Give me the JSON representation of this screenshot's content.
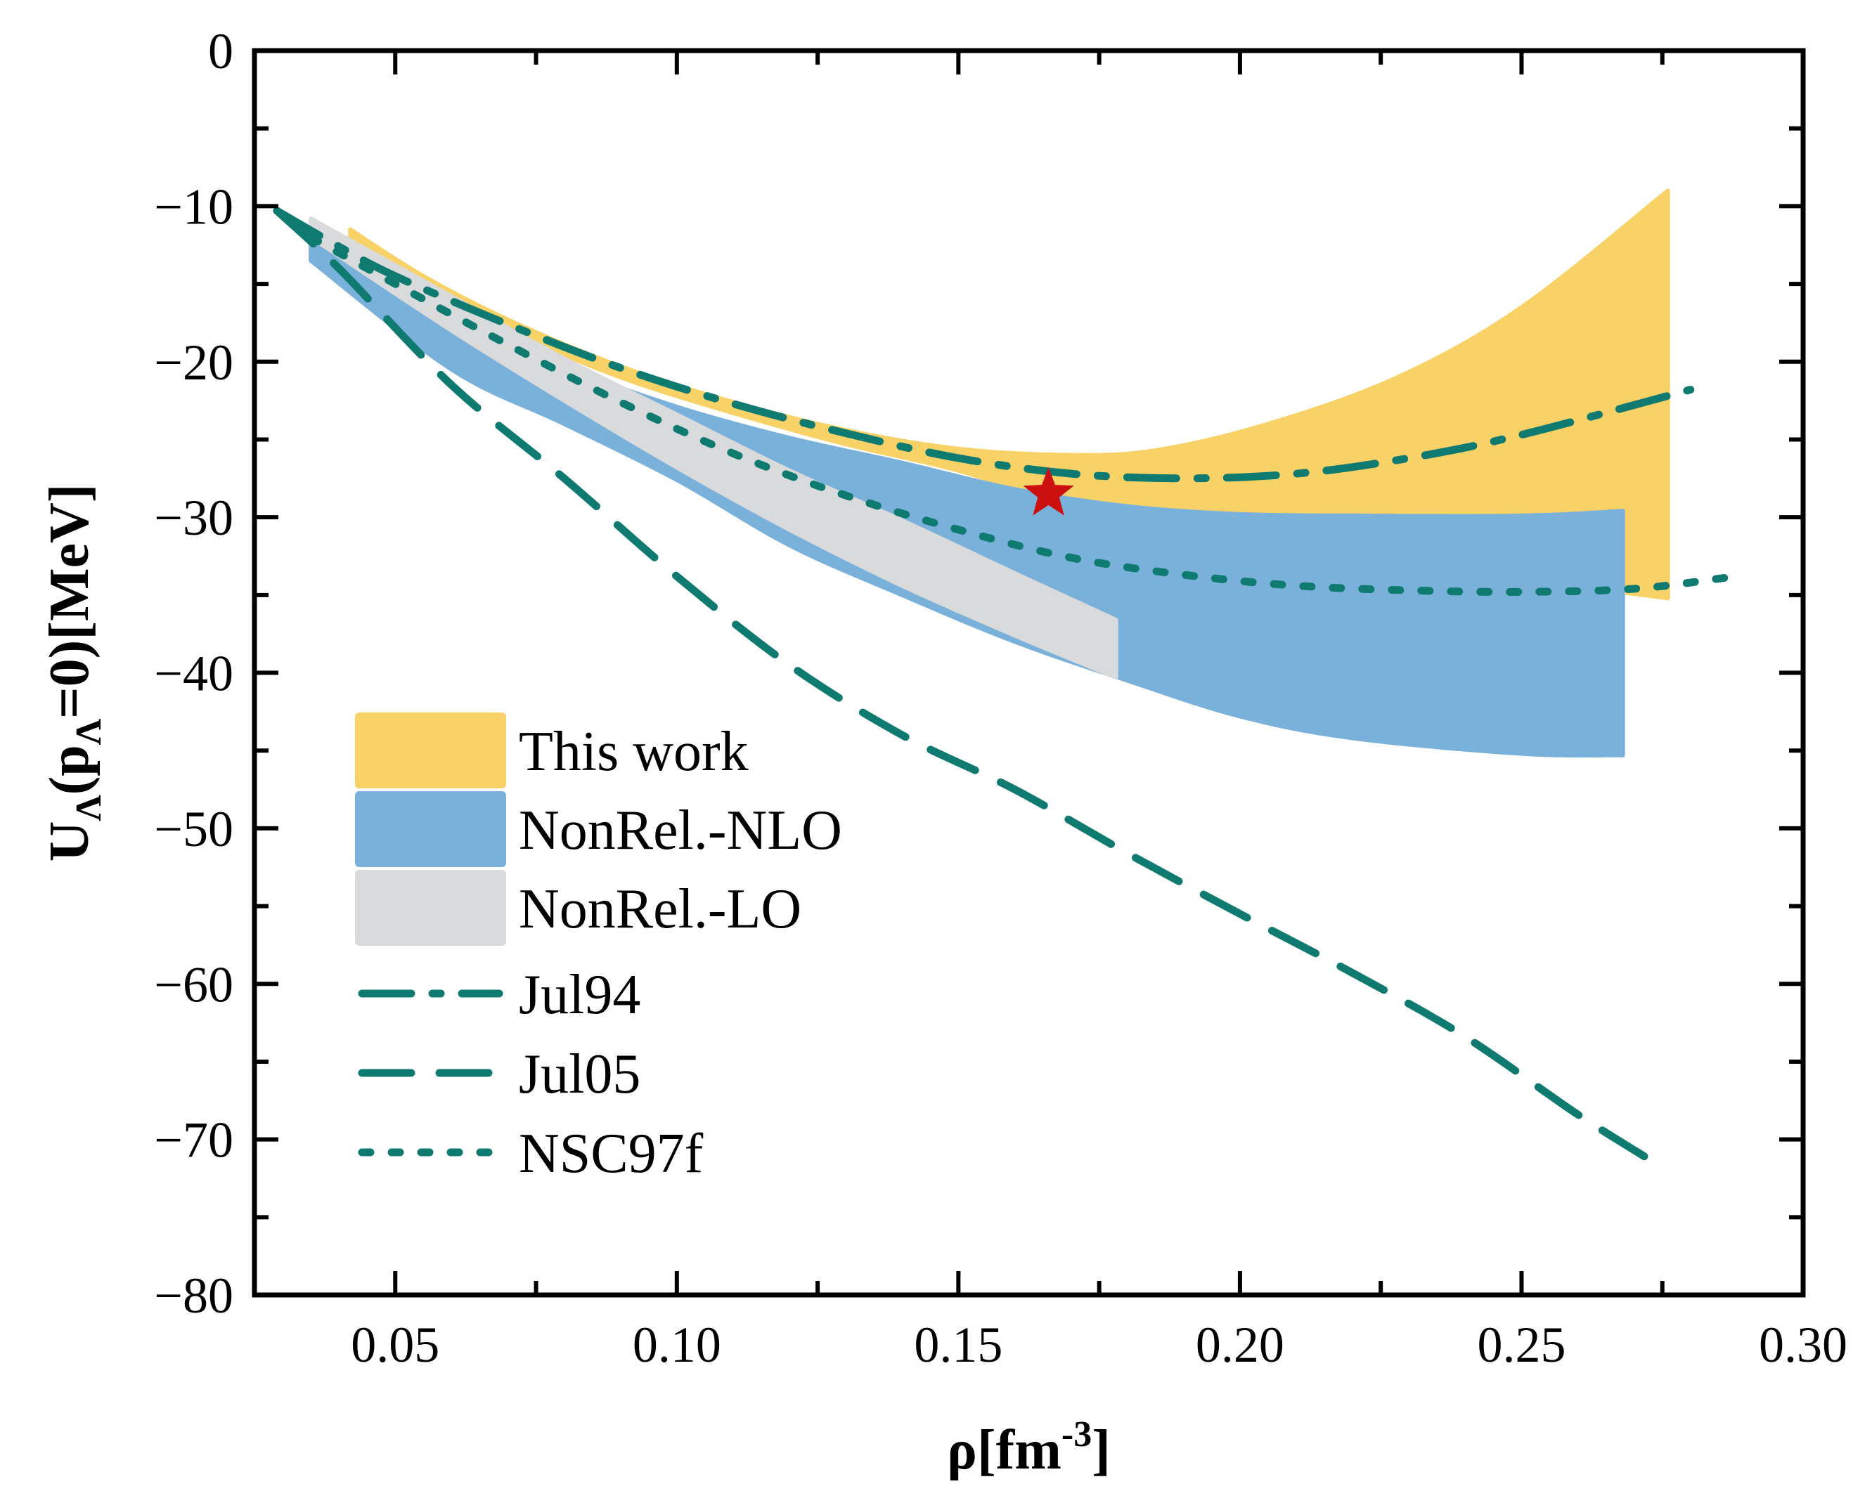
{
  "colors": {
    "this_work": "#f9d267",
    "nlo": "#7ab1da",
    "lo": "#d9dadc",
    "curve": "#0f7a70",
    "star": "#cc1010"
  },
  "chart_data": {
    "type": "line",
    "xlabel": {
      "main": "ρ[fm",
      "sup": "-3",
      "tail": "]"
    },
    "ylabel": {
      "main": "U",
      "sub": "Λ",
      "mid": "(p",
      "sub2": "Λ",
      "tail": "=0)[MeV]"
    },
    "xlim": [
      0.025,
      0.3
    ],
    "ylim": [
      -80,
      0
    ],
    "xticks": [
      {
        "v": 0.05,
        "label": "0.05"
      },
      {
        "v": 0.1,
        "label": "0.10"
      },
      {
        "v": 0.15,
        "label": "0.15"
      },
      {
        "v": 0.2,
        "label": "0.20"
      },
      {
        "v": 0.25,
        "label": "0.25"
      },
      {
        "v": 0.3,
        "label": "0.30"
      }
    ],
    "yticks": [
      {
        "v": 0,
        "label": "0"
      },
      {
        "v": -10,
        "label": "−10"
      },
      {
        "v": -20,
        "label": "−20"
      },
      {
        "v": -30,
        "label": "−30"
      },
      {
        "v": -40,
        "label": "−40"
      },
      {
        "v": -50,
        "label": "−50"
      },
      {
        "v": -60,
        "label": "−60"
      },
      {
        "v": -70,
        "label": "−70"
      },
      {
        "v": -80,
        "label": "−80"
      }
    ],
    "bands": [
      {
        "name": "This work",
        "color_key": "this_work",
        "x": [
          0.042,
          0.055,
          0.07,
          0.09,
          0.11,
          0.13,
          0.15,
          0.17,
          0.185,
          0.205,
          0.228,
          0.25,
          0.276
        ],
        "upper": [
          -11.5,
          -14.5,
          -17.3,
          -20.3,
          -22.6,
          -24.4,
          -25.6,
          -26.0,
          -25.7,
          -24.0,
          -21.0,
          -16.5,
          -9.0
        ],
        "lower": [
          -12.5,
          -15.3,
          -18.0,
          -21.0,
          -23.3,
          -25.3,
          -27.0,
          -29.3,
          -30.5,
          -31.8,
          -32.9,
          -34.0,
          -35.2
        ]
      },
      {
        "name": "NonRel.-NLO",
        "color_key": "nlo",
        "x": [
          0.035,
          0.06,
          0.08,
          0.1,
          0.12,
          0.14,
          0.16,
          0.18,
          0.2,
          0.22,
          0.25,
          0.268
        ],
        "upper": [
          -12.2,
          -17.0,
          -20.3,
          -22.9,
          -24.9,
          -26.5,
          -28.2,
          -29.3,
          -29.8,
          -29.9,
          -29.9,
          -29.6
        ],
        "lower": [
          -13.5,
          -20.5,
          -24.0,
          -27.6,
          -31.8,
          -35.0,
          -38.0,
          -40.5,
          -42.8,
          -44.2,
          -45.2,
          -45.3
        ]
      },
      {
        "name": "NonRel.-LO",
        "color_key": "lo",
        "x": [
          0.035,
          0.06,
          0.08,
          0.1,
          0.12,
          0.14,
          0.16,
          0.178
        ],
        "upper": [
          -10.8,
          -15.8,
          -19.8,
          -23.4,
          -27.0,
          -30.2,
          -33.6,
          -36.6
        ],
        "lower": [
          -12.0,
          -18.0,
          -22.5,
          -26.8,
          -30.8,
          -34.4,
          -37.6,
          -40.3
        ]
      }
    ],
    "lines": [
      {
        "name": "Jul94",
        "style": "dashdot",
        "x": [
          0.029,
          0.04,
          0.05,
          0.07,
          0.09,
          0.11,
          0.13,
          0.15,
          0.17,
          0.19,
          0.21,
          0.23,
          0.25,
          0.28
        ],
        "y": [
          -10.3,
          -12.6,
          -14.5,
          -17.6,
          -20.4,
          -22.7,
          -24.6,
          -26.2,
          -27.2,
          -27.5,
          -27.2,
          -26.2,
          -24.7,
          -21.8
        ]
      },
      {
        "name": "Jul05",
        "style": "dashed",
        "x": [
          0.029,
          0.04,
          0.06,
          0.08,
          0.1,
          0.12,
          0.14,
          0.16,
          0.18,
          0.2,
          0.22,
          0.24,
          0.26,
          0.275
        ],
        "y": [
          -10.3,
          -14.0,
          -21.5,
          -27.5,
          -33.8,
          -39.5,
          -44.0,
          -47.5,
          -51.6,
          -55.5,
          -59.3,
          -63.4,
          -68.4,
          -71.8
        ]
      },
      {
        "name": "NSC97f",
        "style": "dotted",
        "x": [
          0.035,
          0.05,
          0.07,
          0.09,
          0.11,
          0.13,
          0.15,
          0.17,
          0.19,
          0.21,
          0.23,
          0.25,
          0.27,
          0.286
        ],
        "y": [
          -12.0,
          -15.0,
          -18.9,
          -22.6,
          -25.9,
          -28.6,
          -30.8,
          -32.6,
          -33.7,
          -34.4,
          -34.7,
          -34.8,
          -34.6,
          -33.9
        ]
      }
    ],
    "marker": {
      "name": "saturation point",
      "x": 0.166,
      "y": -28.5,
      "shape": "star"
    },
    "legend": {
      "position": "bottom-left",
      "items": [
        {
          "label": "This work",
          "kind": "band",
          "color_key": "this_work"
        },
        {
          "label": "NonRel.-NLO",
          "kind": "band",
          "color_key": "nlo"
        },
        {
          "label": "NonRel.-LO",
          "kind": "band",
          "color_key": "lo"
        },
        {
          "label": "Jul94",
          "kind": "line",
          "style": "dashdot"
        },
        {
          "label": "Jul05",
          "kind": "line",
          "style": "dashed"
        },
        {
          "label": "NSC97f",
          "kind": "line",
          "style": "dotted"
        }
      ]
    }
  }
}
